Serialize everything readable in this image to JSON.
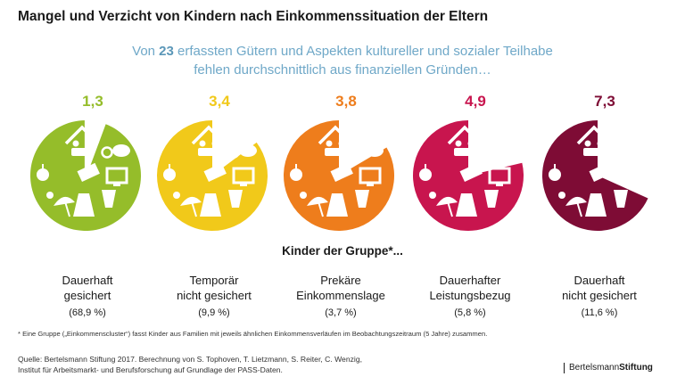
{
  "title": "Mangel und Verzicht von Kindern nach Einkommenssituation der Eltern",
  "subtitle": {
    "prefix": "Von ",
    "number": "23",
    "rest": " erfassten Gütern und Aspekten kultureller und sozialer Teilhabe",
    "line2": "fehlen durchschnittlich aus finanziellen Gründen…"
  },
  "group_heading": "Kinder der Gruppe*...",
  "chart_data": {
    "type": "pie",
    "total": 23,
    "groups": [
      {
        "value": 1.3,
        "value_label": "1,3",
        "label_line1": "Dauerhaft",
        "label_line2": "gesichert",
        "share": "(68,9 %)",
        "color": "#95bd2a"
      },
      {
        "value": 3.4,
        "value_label": "3,4",
        "label_line1": "Temporär",
        "label_line2": "nicht gesichert",
        "share": "(9,9 %)",
        "color": "#f1c91a"
      },
      {
        "value": 3.8,
        "value_label": "3,8",
        "label_line1": "Prekäre",
        "label_line2": "Einkommenslage",
        "share": "(3,7 %)",
        "color": "#ee7d1c"
      },
      {
        "value": 4.9,
        "value_label": "4,9",
        "label_line1": "Dauerhafter",
        "label_line2": "Leistungsbezug",
        "share": "(5,8 %)",
        "color": "#c8154e"
      },
      {
        "value": 7.3,
        "value_label": "7,3",
        "label_line1": "Dauerhaft",
        "label_line2": "nicht gesichert",
        "share": "(11,6 %)",
        "color": "#7e0c35"
      }
    ]
  },
  "footnote": "* Eine Gruppe („Einkommenscluster“) fasst Kinder aus Familien mit jeweils ähnlichen Einkommensverläufen im Beobachtungszeitraum (5 Jahre) zusammen.",
  "source_lines": [
    "Quelle: Bertelsmann Stiftung 2017. Berechnung von S. Tophoven, T. Lietzmann, S. Reiter, C. Wenzig,",
    "Institut für Arbeitsmarkt- und Berufsforschung auf Grundlage der PASS-Daten."
  ],
  "logo": {
    "part1": "Bertelsmann",
    "part2": "Stiftung"
  },
  "icons": [
    "house-family-icon",
    "coin-icon",
    "piggy-bank-icon",
    "apple-icon",
    "kino-ticket-icon",
    "computer-icon",
    "sun-icon",
    "beach-umbrella-icon",
    "jacket-icon",
    "clothes-icon"
  ]
}
